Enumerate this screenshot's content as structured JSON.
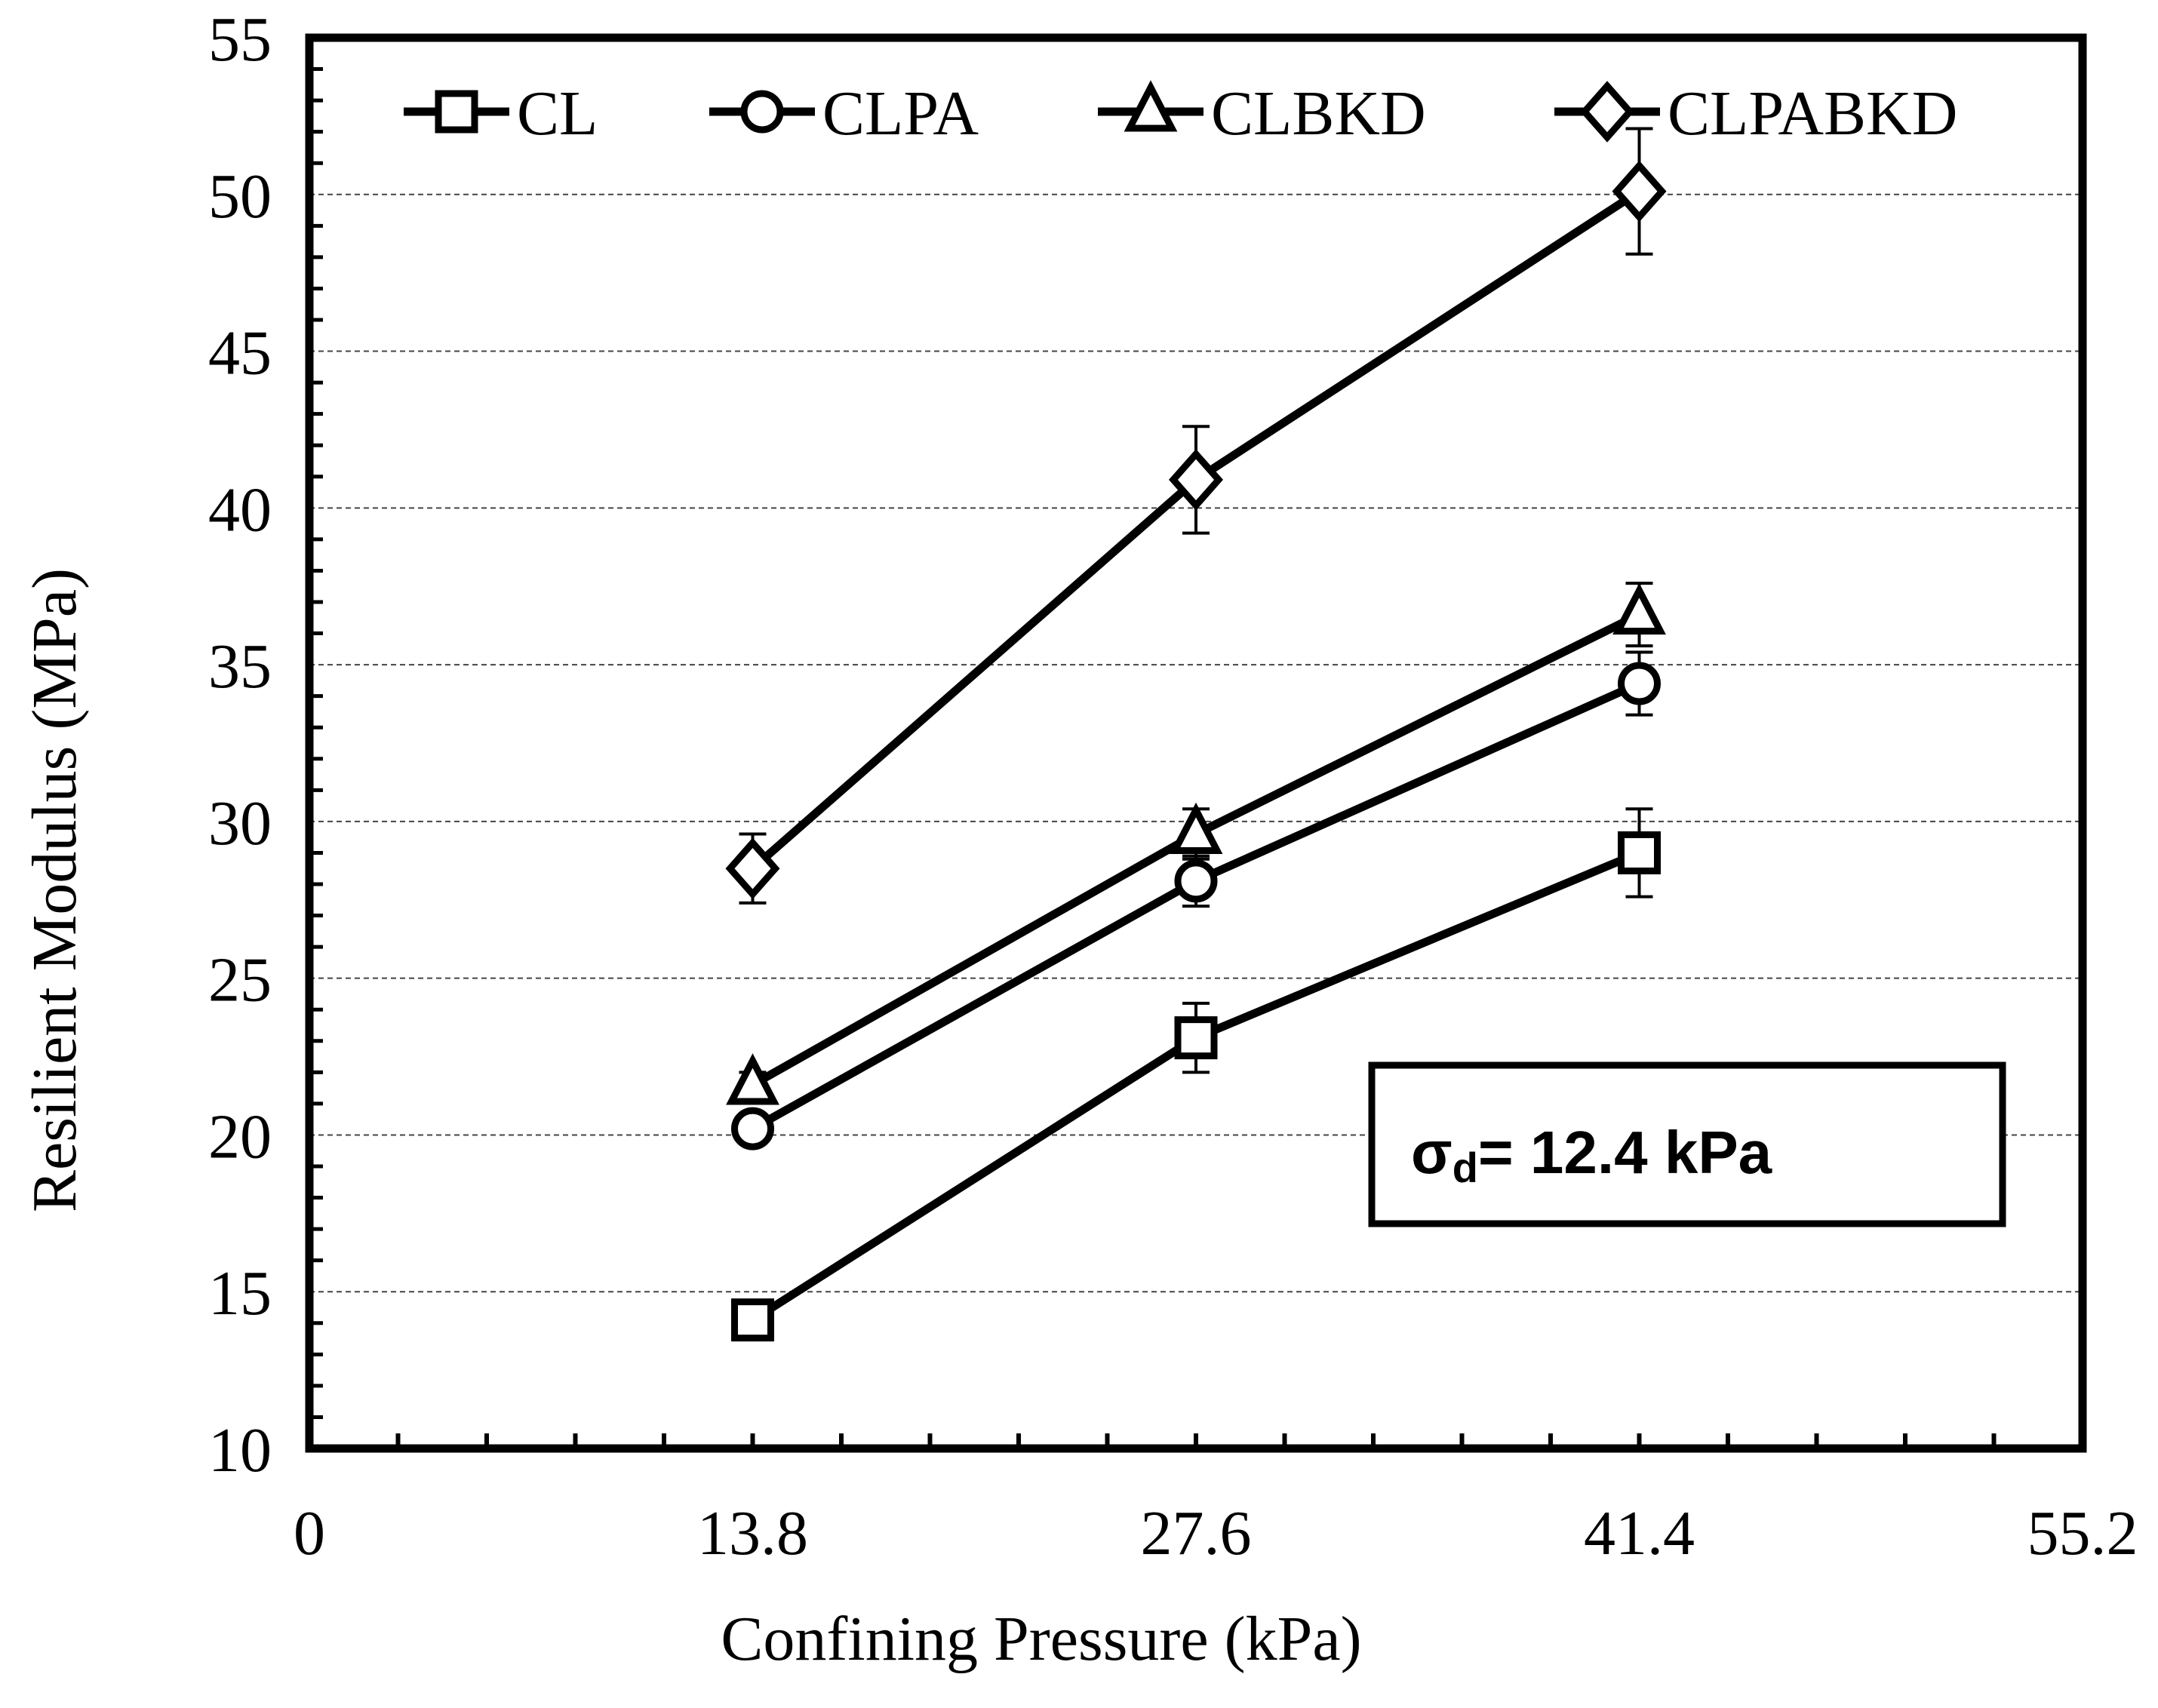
{
  "chart_data": {
    "type": "line",
    "title": "",
    "xlabel": "Confining Pressure (kPa)",
    "ylabel": "Resilient Modulus (MPa)",
    "xlim": [
      0,
      55.2
    ],
    "ylim": [
      10,
      55
    ],
    "x_ticks": [
      "0",
      "13.8",
      "27.6",
      "41.4",
      "55.2"
    ],
    "y_ticks": [
      "10",
      "15",
      "20",
      "25",
      "30",
      "35",
      "40",
      "45",
      "50",
      "55"
    ],
    "grid": "horizontal dashed",
    "legend_position": "top",
    "x": [
      13.8,
      27.6,
      41.4
    ],
    "series": [
      {
        "name": "CL",
        "marker": "square",
        "values": [
          14.1,
          23.1,
          29.0
        ],
        "errors": [
          0.3,
          1.1,
          1.4
        ]
      },
      {
        "name": "CLPA",
        "marker": "circle",
        "values": [
          20.2,
          28.1,
          34.4
        ],
        "errors": [
          0.3,
          0.8,
          1.0
        ]
      },
      {
        "name": "CLBKD",
        "marker": "triangle",
        "values": [
          21.6,
          29.6,
          36.6
        ],
        "errors": [
          0.4,
          0.8,
          1.0
        ]
      },
      {
        "name": "CLPABKD",
        "marker": "diamond",
        "values": [
          28.5,
          40.9,
          50.1
        ],
        "errors": [
          1.1,
          1.7,
          2.0
        ]
      }
    ],
    "annotation": {
      "prefix": "σ",
      "subscript": "d",
      "text": "= 12.4 kPa"
    }
  }
}
